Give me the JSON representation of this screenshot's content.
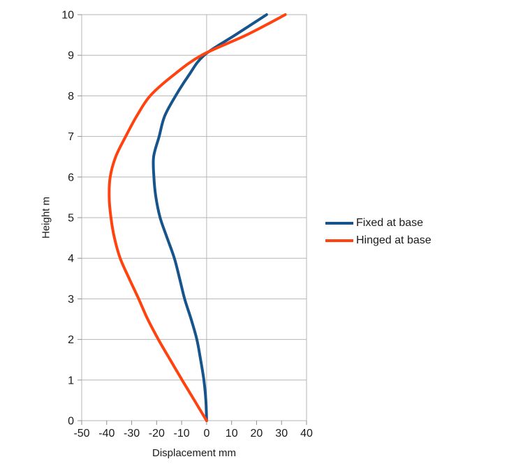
{
  "chart_data": {
    "type": "line",
    "title": "",
    "xlabel": "Displacement mm",
    "ylabel": "Height m",
    "xlim": [
      -50,
      40
    ],
    "ylim": [
      0,
      10
    ],
    "x_ticks": [
      -50,
      -40,
      -30,
      -20,
      -10,
      0,
      10,
      20,
      30,
      40
    ],
    "y_ticks": [
      0,
      1,
      2,
      3,
      4,
      5,
      6,
      7,
      8,
      9,
      10
    ],
    "grid": "horizontal-gridlines-plus-vertical-zero-line",
    "legend_position": "right",
    "series": [
      {
        "name": "Fixed at base",
        "color": "#17548C",
        "points": [
          [
            0,
            0
          ],
          [
            -0.3,
            0.5
          ],
          [
            -1.1,
            1
          ],
          [
            -2.4,
            1.5
          ],
          [
            -3.9,
            2
          ],
          [
            -6.2,
            2.5
          ],
          [
            -8.8,
            3
          ],
          [
            -10.8,
            3.5
          ],
          [
            -12.9,
            4
          ],
          [
            -15.8,
            4.5
          ],
          [
            -18.6,
            5
          ],
          [
            -20.3,
            5.5
          ],
          [
            -21.1,
            6
          ],
          [
            -21.2,
            6.5
          ],
          [
            -19.0,
            7
          ],
          [
            -16.8,
            7.5
          ],
          [
            -12.4,
            8
          ],
          [
            -7.2,
            8.5
          ],
          [
            -1.0,
            9
          ],
          [
            11.5,
            9.5
          ],
          [
            24.0,
            10
          ]
        ]
      },
      {
        "name": "Hinged at base",
        "color": "#FF420E",
        "points": [
          [
            0,
            0
          ],
          [
            -4.9,
            0.5
          ],
          [
            -9.8,
            1
          ],
          [
            -14.6,
            1.5
          ],
          [
            -19.3,
            2
          ],
          [
            -23.6,
            2.5
          ],
          [
            -27.2,
            3
          ],
          [
            -31.0,
            3.5
          ],
          [
            -34.6,
            4
          ],
          [
            -36.9,
            4.5
          ],
          [
            -38.3,
            5
          ],
          [
            -39.0,
            5.5
          ],
          [
            -38.6,
            6
          ],
          [
            -36.4,
            6.5
          ],
          [
            -32.4,
            7
          ],
          [
            -28.0,
            7.5
          ],
          [
            -22.6,
            8
          ],
          [
            -13.5,
            8.5
          ],
          [
            -2.0,
            9
          ],
          [
            16.0,
            9.5
          ],
          [
            31.5,
            10
          ]
        ]
      }
    ]
  },
  "styles": {
    "gridline_color": "#b6b6b6",
    "axis_color": "#8f8f8f",
    "tick_label_color": "#1a1a1a",
    "line_width": 4,
    "background": "#ffffff"
  }
}
